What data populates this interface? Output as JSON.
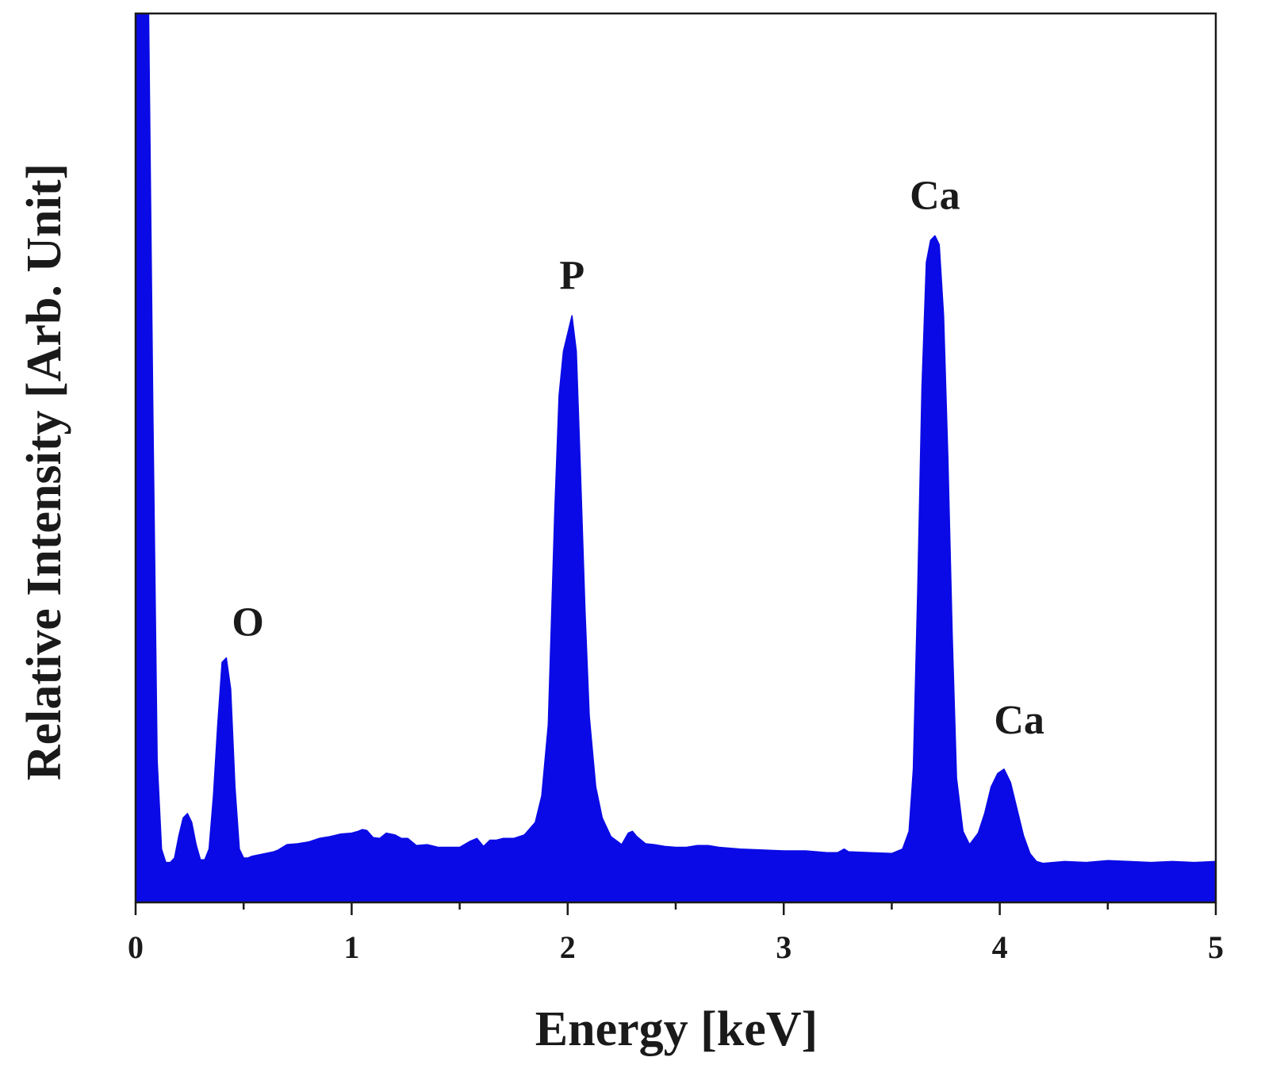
{
  "chart_data": {
    "type": "area",
    "title": "",
    "xlabel": "Energy [keV]",
    "ylabel": "Relative Intensity [Arb. Unit]",
    "xlim": [
      0,
      5
    ],
    "ylim": [
      0,
      100
    ],
    "xticks": [
      0,
      1,
      2,
      3,
      4,
      5
    ],
    "xtick_labels": [
      "0",
      "1",
      "2",
      "3",
      "4",
      "5"
    ],
    "grid": false,
    "legend": "none",
    "color": "#0a0ae6",
    "series": [
      {
        "x": [
          0.0,
          0.02,
          0.04,
          0.06,
          0.08,
          0.1,
          0.12,
          0.14,
          0.16,
          0.18,
          0.2,
          0.22,
          0.24,
          0.26,
          0.28,
          0.3,
          0.32,
          0.34,
          0.36,
          0.38,
          0.4,
          0.42,
          0.44,
          0.46,
          0.48,
          0.5,
          0.52,
          0.54,
          0.56,
          0.58,
          0.6,
          0.62,
          0.64,
          0.66,
          0.7,
          0.75,
          0.8,
          0.85,
          0.9,
          0.95,
          1.0,
          1.03,
          1.05,
          1.07,
          1.1,
          1.13,
          1.16,
          1.2,
          1.23,
          1.26,
          1.3,
          1.35,
          1.4,
          1.45,
          1.5,
          1.55,
          1.58,
          1.61,
          1.64,
          1.67,
          1.7,
          1.75,
          1.8,
          1.85,
          1.88,
          1.91,
          1.94,
          1.96,
          1.98,
          2.0,
          2.02,
          2.04,
          2.06,
          2.08,
          2.1,
          2.13,
          2.16,
          2.2,
          2.25,
          2.28,
          2.3,
          2.32,
          2.36,
          2.4,
          2.45,
          2.5,
          2.55,
          2.6,
          2.65,
          2.7,
          2.8,
          2.9,
          3.0,
          3.1,
          3.2,
          3.25,
          3.28,
          3.3,
          3.4,
          3.5,
          3.55,
          3.58,
          3.6,
          3.62,
          3.64,
          3.66,
          3.68,
          3.7,
          3.72,
          3.74,
          3.76,
          3.78,
          3.8,
          3.83,
          3.86,
          3.9,
          3.93,
          3.96,
          3.99,
          4.02,
          4.05,
          4.08,
          4.11,
          4.14,
          4.17,
          4.2,
          4.3,
          4.4,
          4.5,
          4.6,
          4.7,
          4.8,
          4.9,
          5.0
        ],
        "y": [
          101,
          101,
          101,
          101,
          55,
          16,
          6,
          4.5,
          4.5,
          5,
          7.5,
          9.5,
          10,
          9,
          6.5,
          4.8,
          4.8,
          6,
          12,
          20,
          27,
          27.5,
          24,
          13,
          6,
          5,
          5,
          5.2,
          5.3,
          5.4,
          5.5,
          5.6,
          5.7,
          5.9,
          6.5,
          6.6,
          6.8,
          7.2,
          7.4,
          7.7,
          7.8,
          8,
          8.2,
          8.1,
          7.3,
          7.2,
          7.8,
          7.6,
          7.2,
          7.2,
          6.4,
          6.5,
          6.2,
          6.2,
          6.2,
          6.9,
          7.2,
          6.3,
          7,
          7,
          7.2,
          7.2,
          7.6,
          9,
          12,
          20,
          44,
          57,
          62,
          64,
          66,
          62,
          48,
          33,
          21,
          13,
          9.5,
          7.4,
          6.5,
          7.8,
          8,
          7.4,
          6.6,
          6.5,
          6.3,
          6.2,
          6.2,
          6.4,
          6.4,
          6.2,
          6,
          5.9,
          5.8,
          5.8,
          5.6,
          5.6,
          6,
          5.7,
          5.6,
          5.5,
          6,
          8,
          15,
          35,
          58,
          72,
          74.5,
          75,
          74,
          66,
          50,
          30,
          14,
          8,
          6.5,
          7.8,
          10,
          13,
          14.5,
          15,
          13.5,
          10.5,
          7.5,
          5.5,
          4.6,
          4.4,
          4.6,
          4.5,
          4.7,
          4.6,
          4.5,
          4.6,
          4.5,
          4.6
        ]
      }
    ],
    "annotations": [
      {
        "text": "O",
        "x": 0.52,
        "y": 30
      },
      {
        "text": "P",
        "x": 2.02,
        "y": 69
      },
      {
        "text": "Ca",
        "x": 3.7,
        "y": 78
      },
      {
        "text": "Ca",
        "x": 4.09,
        "y": 19
      }
    ]
  }
}
